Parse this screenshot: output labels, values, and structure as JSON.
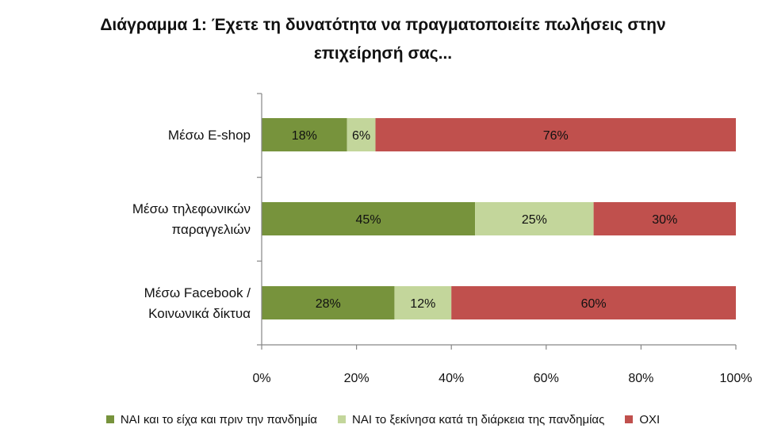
{
  "chart_data": {
    "type": "bar",
    "orientation": "horizontal",
    "stacked": true,
    "title": "Διάγραμμα 1: Έχετε τη δυνατότητα να πραγματοποιείτε πωλήσεις στην επιχείρησή σας...",
    "title_lines": [
      "Διάγραμμα 1: Έχετε τη δυνατότητα να πραγματοποιείτε πωλήσεις στην",
      "επιχείρησή σας..."
    ],
    "categories": [
      [
        "Μέσω E-shop"
      ],
      [
        "Μέσω τηλεφωνικών",
        "παραγγελιών"
      ],
      [
        "Μέσω Facebook /",
        "Κοινωνικά δίκτυα"
      ]
    ],
    "series": [
      {
        "name": "ΝΑΙ και το είχα και πριν την πανδημία",
        "color": "#77933c",
        "values": [
          18,
          45,
          28
        ],
        "labels": [
          "18%",
          "45%",
          "28%"
        ]
      },
      {
        "name": "ΝΑΙ το ξεκίνησα κατά τη διάρκεια της πανδημίας",
        "color": "#c3d69b",
        "values": [
          6,
          25,
          12
        ],
        "labels": [
          "6%",
          "25%",
          "12%"
        ]
      },
      {
        "name": "ΟΧΙ",
        "color": "#c0504d",
        "values": [
          76,
          30,
          60
        ],
        "labels": [
          "76%",
          "30%",
          "60%"
        ]
      }
    ],
    "xlim": [
      0,
      100
    ],
    "x_ticks": [
      "0%",
      "20%",
      "40%",
      "60%",
      "80%",
      "100%"
    ],
    "grid": false,
    "legend_position": "bottom"
  }
}
